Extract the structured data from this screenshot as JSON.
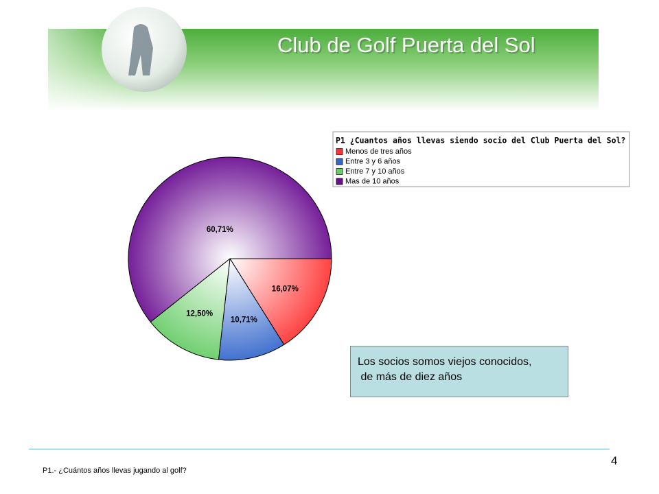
{
  "header": {
    "title": "Club de Golf Puerta del Sol"
  },
  "chart_data": {
    "type": "pie",
    "title": "P1 ¿Cuantos años llevas siendo socio del Club Puerta del Sol?",
    "categories": [
      "Menos de tres años",
      "Entre 3 y 6 años",
      "Entre 7 y 10 años",
      "Mas de 10 años"
    ],
    "values": [
      16.07,
      10.71,
      12.5,
      60.71
    ],
    "value_labels": [
      "16,07%",
      "10,71%",
      "12,50%",
      "60,71%"
    ],
    "colors": [
      "#ff3333",
      "#3366cc",
      "#66cc66",
      "#6a0d91"
    ],
    "legend": "top-right"
  },
  "note": {
    "lines": [
      "Los socios somos viejos conocidos,",
      " de más de diez años"
    ]
  },
  "page_number": "4",
  "footer": "P1.- ¿Cuántos años llevas jugando al golf?"
}
